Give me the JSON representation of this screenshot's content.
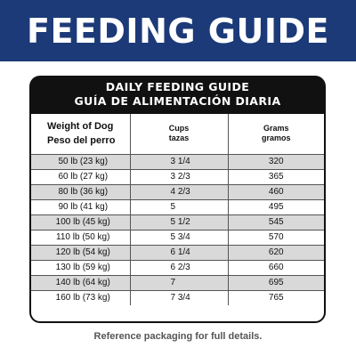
{
  "banner": {
    "title": "FEEDING GUIDE",
    "color": "#1c3a78"
  },
  "card": {
    "title_en": "DAILY FEEDING GUIDE",
    "title_es": "GUÍA DE ALIMENTACIÓN DIARIA"
  },
  "table": {
    "headers": {
      "weight_en": "Weight of Dog",
      "weight_es": "Peso del perro",
      "cups_en": "Cups",
      "cups_es": "tazas",
      "grams_en": "Grams",
      "grams_es": "gramos"
    },
    "rows": [
      {
        "weight": "50 lb (23 kg)",
        "cups": "3 1/4",
        "grams": "320"
      },
      {
        "weight": "60 lb (27 kg)",
        "cups": "3 2/3",
        "grams": "365"
      },
      {
        "weight": "80 lb (36 kg)",
        "cups": "4 2/3",
        "grams": "460"
      },
      {
        "weight": "90 lb (41 kg)",
        "cups": "5",
        "grams": "495"
      },
      {
        "weight": "100 lb (45 kg)",
        "cups": "5 1/2",
        "grams": "545"
      },
      {
        "weight": "110 lb (50 kg)",
        "cups": "5 3/4",
        "grams": "570"
      },
      {
        "weight": "120 lb (54 kg)",
        "cups": "6 1/4",
        "grams": "620"
      },
      {
        "weight": "130 lb (59 kg)",
        "cups": "6 2/3",
        "grams": "660"
      },
      {
        "weight": "140 lb (64 kg)",
        "cups": "7",
        "grams": "695"
      },
      {
        "weight": "160 lb (73 kg)",
        "cups": "7 3/4",
        "grams": "765"
      }
    ]
  },
  "footer": {
    "note": "Reference packaging for full details."
  }
}
